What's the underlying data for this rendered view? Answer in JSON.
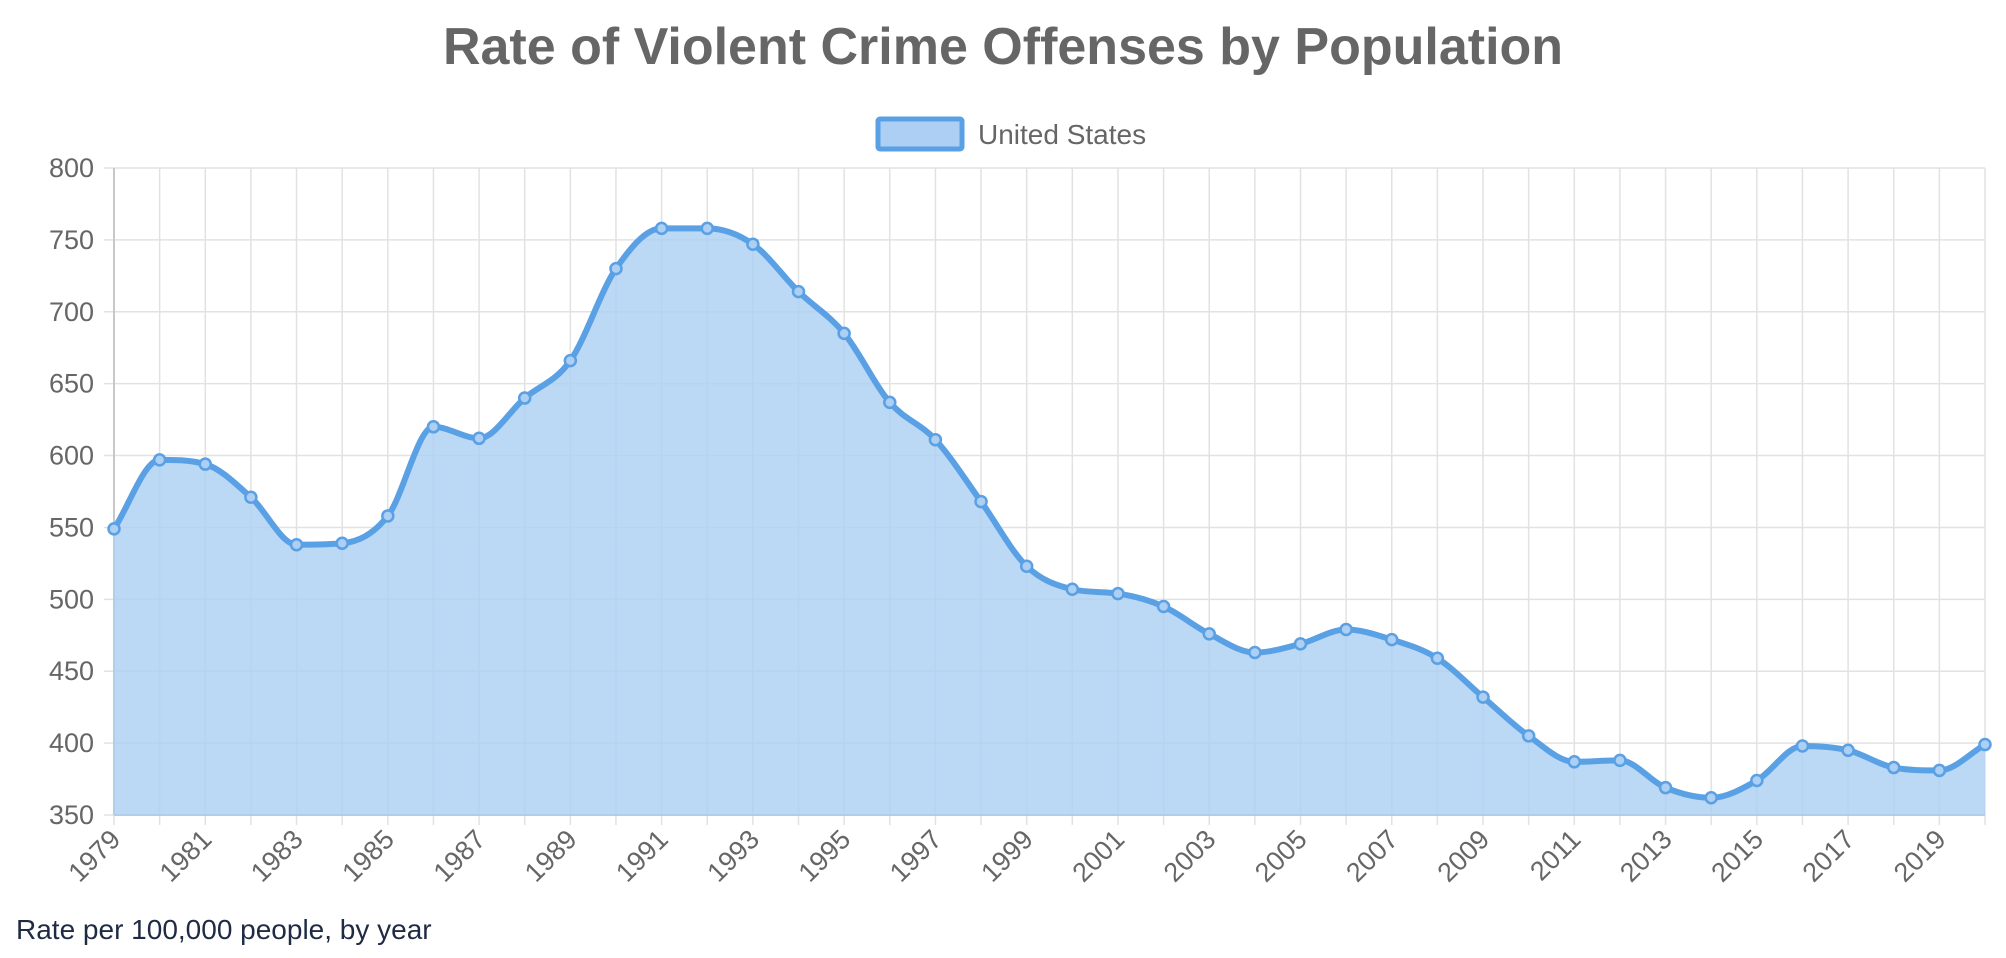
{
  "caption": "Rate per 100,000 people, by year",
  "chart_data": {
    "type": "area",
    "title": "Rate of Violent Crime Offenses by Population",
    "xlabel": "",
    "ylabel": "",
    "ylim": [
      350,
      800
    ],
    "yticks": [
      350,
      400,
      450,
      500,
      550,
      600,
      650,
      700,
      750,
      800
    ],
    "xticks": [
      "1979",
      "1981",
      "1983",
      "1985",
      "1987",
      "1989",
      "1991",
      "1993",
      "1995",
      "1997",
      "1999",
      "2001",
      "2003",
      "2005",
      "2007",
      "2009",
      "2011",
      "2013",
      "2015",
      "2017",
      "2019"
    ],
    "grid": true,
    "legend_position": "top-center",
    "series": [
      {
        "name": "United States",
        "line_color": "#5aa0e4",
        "fill_color": "#accff3",
        "x": [
          1979,
          1980,
          1981,
          1982,
          1983,
          1984,
          1985,
          1986,
          1987,
          1988,
          1989,
          1990,
          1991,
          1992,
          1993,
          1994,
          1995,
          1996,
          1997,
          1998,
          1999,
          2000,
          2001,
          2002,
          2003,
          2004,
          2005,
          2006,
          2007,
          2008,
          2009,
          2010,
          2011,
          2012,
          2013,
          2014,
          2015,
          2016,
          2017,
          2018,
          2019,
          2020
        ],
        "values": [
          549,
          597,
          594,
          571,
          538,
          539,
          558,
          620,
          612,
          640,
          666,
          730,
          758,
          758,
          747,
          714,
          685,
          637,
          611,
          568,
          523,
          507,
          504,
          495,
          476,
          463,
          469,
          479,
          472,
          459,
          432,
          405,
          387,
          388,
          369,
          362,
          374,
          398,
          395,
          383,
          381,
          399
        ]
      }
    ]
  }
}
